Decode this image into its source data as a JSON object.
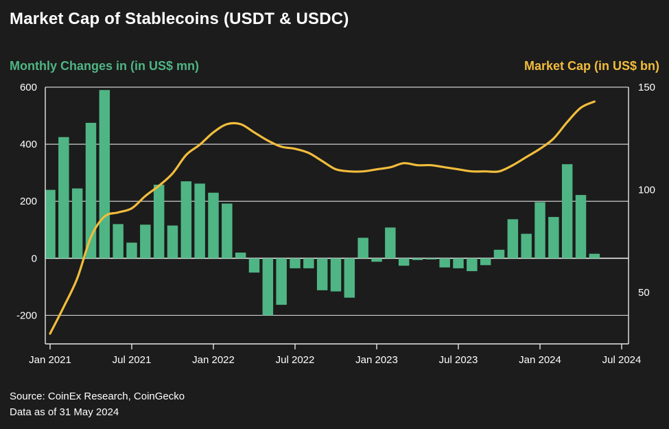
{
  "chart_data": {
    "type": "bar+line",
    "title": "Market Cap of Stablecoins (USDT & USDC)",
    "left_axis": {
      "label": "Monthly Changes in (in US$ mn)",
      "ylim": [
        -300,
        600
      ],
      "ticks": [
        600,
        400,
        200,
        0,
        -200
      ],
      "tick_labels": [
        "600",
        "400",
        "200",
        "0",
        "-200"
      ]
    },
    "right_axis": {
      "label": "Market Cap (in US$ bn)",
      "ylim": [
        25,
        150
      ],
      "ticks": [
        150,
        100,
        50
      ],
      "tick_labels": [
        "150",
        "100",
        "50"
      ]
    },
    "x_axis": {
      "ticks": [
        "2021-01",
        "2021-07",
        "2022-01",
        "2022-07",
        "2023-01",
        "2023-07",
        "2024-01",
        "2024-07"
      ],
      "tick_labels": [
        "Jan 2021",
        "Jul 2021",
        "Jan 2022",
        "Jul 2022",
        "Jan 2023",
        "Jul 2023",
        "Jan 2024",
        "Jul 2024"
      ]
    },
    "grid": true,
    "months": [
      "2021-01",
      "2021-02",
      "2021-03",
      "2021-04",
      "2021-05",
      "2021-06",
      "2021-07",
      "2021-08",
      "2021-09",
      "2021-10",
      "2021-11",
      "2021-12",
      "2022-01",
      "2022-02",
      "2022-03",
      "2022-04",
      "2022-05",
      "2022-06",
      "2022-07",
      "2022-08",
      "2022-09",
      "2022-10",
      "2022-11",
      "2022-12",
      "2023-01",
      "2023-02",
      "2023-03",
      "2023-04",
      "2023-05",
      "2023-06",
      "2023-07",
      "2023-08",
      "2023-09",
      "2023-10",
      "2023-11",
      "2023-12",
      "2024-01",
      "2024-02",
      "2024-03",
      "2024-04",
      "2024-05"
    ],
    "series": [
      {
        "type": "bar",
        "axis": "left",
        "values": [
          240,
          425,
          245,
          475,
          590,
          120,
          55,
          118,
          258,
          115,
          270,
          262,
          230,
          192,
          20,
          -50,
          -200,
          -163,
          -35,
          -35,
          -112,
          -116,
          -138,
          72,
          -12,
          108,
          -26,
          -6,
          -4,
          -32,
          -35,
          -45,
          -24,
          30,
          137,
          86,
          197,
          145,
          330,
          222,
          16
        ]
      },
      {
        "type": "line",
        "axis": "right",
        "x": [
          "2021-01",
          "2021-02",
          "2021-03",
          "2021-04",
          "2021-05",
          "2021-06",
          "2021-07",
          "2021-08",
          "2021-09",
          "2021-10",
          "2021-11",
          "2021-12",
          "2022-01",
          "2022-02",
          "2022-03",
          "2022-04",
          "2022-05",
          "2022-06",
          "2022-07",
          "2022-08",
          "2022-09",
          "2022-10",
          "2022-11",
          "2022-12",
          "2023-01",
          "2023-02",
          "2023-03",
          "2023-04",
          "2023-05",
          "2023-06",
          "2023-07",
          "2023-08",
          "2023-09",
          "2023-10",
          "2023-11",
          "2023-12",
          "2024-01",
          "2024-02",
          "2024-03",
          "2024-04",
          "2024-05"
        ],
        "values": [
          30,
          43,
          57,
          77,
          87,
          89,
          91,
          97,
          102,
          108,
          117,
          122,
          128,
          132,
          132,
          128,
          124,
          121,
          120,
          118,
          114,
          110,
          109,
          109,
          110,
          111,
          113,
          112,
          112,
          111,
          110,
          109,
          109,
          109,
          112,
          116,
          120,
          125,
          133,
          140,
          143
        ]
      }
    ],
    "colors": {
      "bars": "#4fb584",
      "line": "#f2bd3c",
      "grid": "#cfcfcf",
      "background": "#1c1c1c"
    },
    "source": "Source: CoinEx Research, CoinGecko",
    "note": "Data as of 31 May 2024"
  }
}
